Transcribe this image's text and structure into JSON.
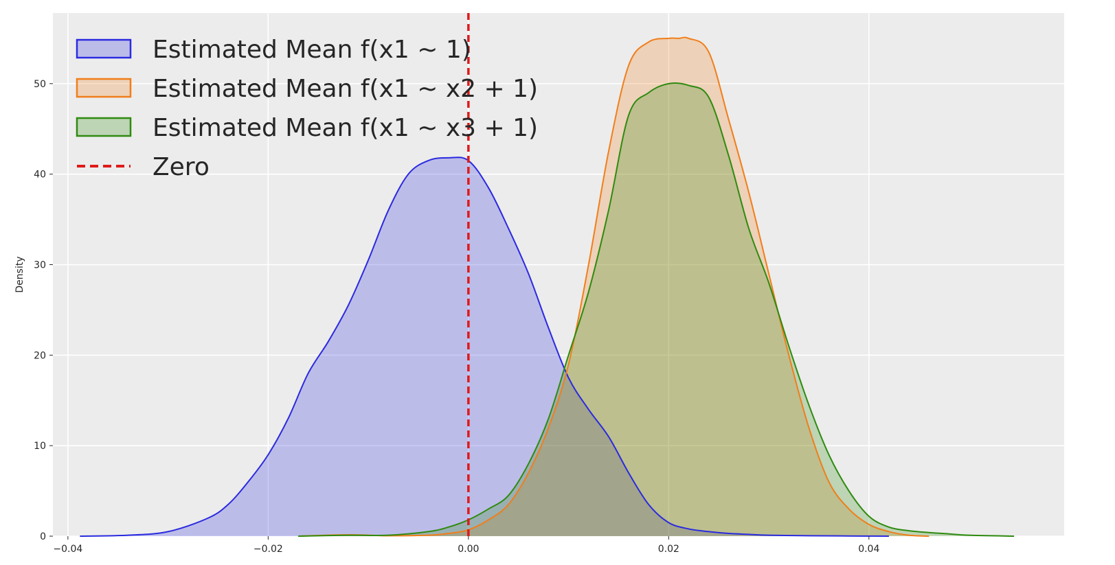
{
  "chart_data": {
    "type": "area",
    "title": "",
    "xlabel": "",
    "ylabel": "Density",
    "xlim": [
      -0.0415,
      0.0595
    ],
    "ylim": [
      0,
      57.8
    ],
    "xticks": [
      -0.04,
      -0.02,
      0.0,
      0.02,
      0.04
    ],
    "xtick_labels": [
      "−0.04",
      "−0.02",
      "0.00",
      "0.02",
      "0.04"
    ],
    "yticks": [
      0,
      10,
      20,
      30,
      40,
      50
    ],
    "ytick_labels": [
      "0",
      "10",
      "20",
      "30",
      "40",
      "50"
    ],
    "grid": true,
    "legend_position": "top-left",
    "series": [
      {
        "name": "Estimated Mean f(x1 ~ 1)",
        "color": "#2a2ae0",
        "fill": "#b9b9f0",
        "x": [
          -0.0388,
          -0.034,
          -0.03,
          -0.026,
          -0.024,
          -0.022,
          -0.02,
          -0.018,
          -0.016,
          -0.014,
          -0.012,
          -0.01,
          -0.008,
          -0.006,
          -0.004,
          -0.002,
          0.0,
          0.002,
          0.004,
          0.006,
          0.008,
          0.01,
          0.012,
          0.014,
          0.016,
          0.018,
          0.02,
          0.022,
          0.024,
          0.026,
          0.028,
          0.03,
          0.034,
          0.038,
          0.042
        ],
        "y": [
          0.0,
          0.1,
          0.5,
          2.0,
          3.5,
          6.0,
          9.0,
          13.0,
          18.0,
          21.5,
          25.5,
          30.5,
          36.0,
          40.0,
          41.5,
          41.8,
          41.5,
          38.5,
          34.0,
          29.0,
          23.0,
          17.5,
          14.0,
          11.0,
          7.0,
          3.5,
          1.5,
          0.8,
          0.5,
          0.3,
          0.2,
          0.1,
          0.05,
          0.02,
          0.0
        ]
      },
      {
        "name": "Estimated Mean f(x1 ~ x2 + 1)",
        "color": "#f07e1a",
        "fill": "#f2ceb0",
        "x": [
          -0.017,
          -0.012,
          -0.008,
          -0.004,
          -0.002,
          0.0,
          0.002,
          0.004,
          0.006,
          0.008,
          0.01,
          0.012,
          0.014,
          0.016,
          0.018,
          0.02,
          0.021,
          0.022,
          0.024,
          0.026,
          0.028,
          0.03,
          0.032,
          0.034,
          0.036,
          0.038,
          0.04,
          0.042,
          0.044,
          0.046
        ],
        "y": [
          0.0,
          0.15,
          0.05,
          0.1,
          0.3,
          0.7,
          1.8,
          3.5,
          7.0,
          12.0,
          19.0,
          30.0,
          42.5,
          52.0,
          54.6,
          55.0,
          55.0,
          55.0,
          53.5,
          46.0,
          38.0,
          29.0,
          20.0,
          12.0,
          6.0,
          3.0,
          1.3,
          0.5,
          0.1,
          0.0
        ]
      },
      {
        "name": "Estimated Mean f(x1 ~ x3 + 1)",
        "color": "#2e8a0f",
        "fill": "#b9d2a6",
        "x": [
          -0.017,
          -0.012,
          -0.008,
          -0.004,
          -0.002,
          0.0,
          0.002,
          0.004,
          0.006,
          0.008,
          0.01,
          0.012,
          0.014,
          0.016,
          0.018,
          0.02,
          0.022,
          0.024,
          0.026,
          0.028,
          0.03,
          0.032,
          0.034,
          0.036,
          0.038,
          0.04,
          0.042,
          0.044,
          0.046,
          0.048,
          0.05,
          0.0545
        ],
        "y": [
          0.0,
          0.1,
          0.1,
          0.5,
          1.0,
          1.8,
          3.0,
          4.5,
          8.0,
          13.0,
          20.0,
          27.0,
          36.0,
          46.5,
          49.0,
          50.0,
          49.8,
          48.5,
          42.0,
          34.0,
          28.0,
          21.0,
          14.5,
          9.0,
          5.0,
          2.2,
          1.0,
          0.6,
          0.4,
          0.25,
          0.1,
          0.0
        ]
      }
    ],
    "reference_lines": [
      {
        "name": "Zero",
        "x": 0.0,
        "color": "#e01a1a",
        "style": "dashed"
      }
    ]
  }
}
